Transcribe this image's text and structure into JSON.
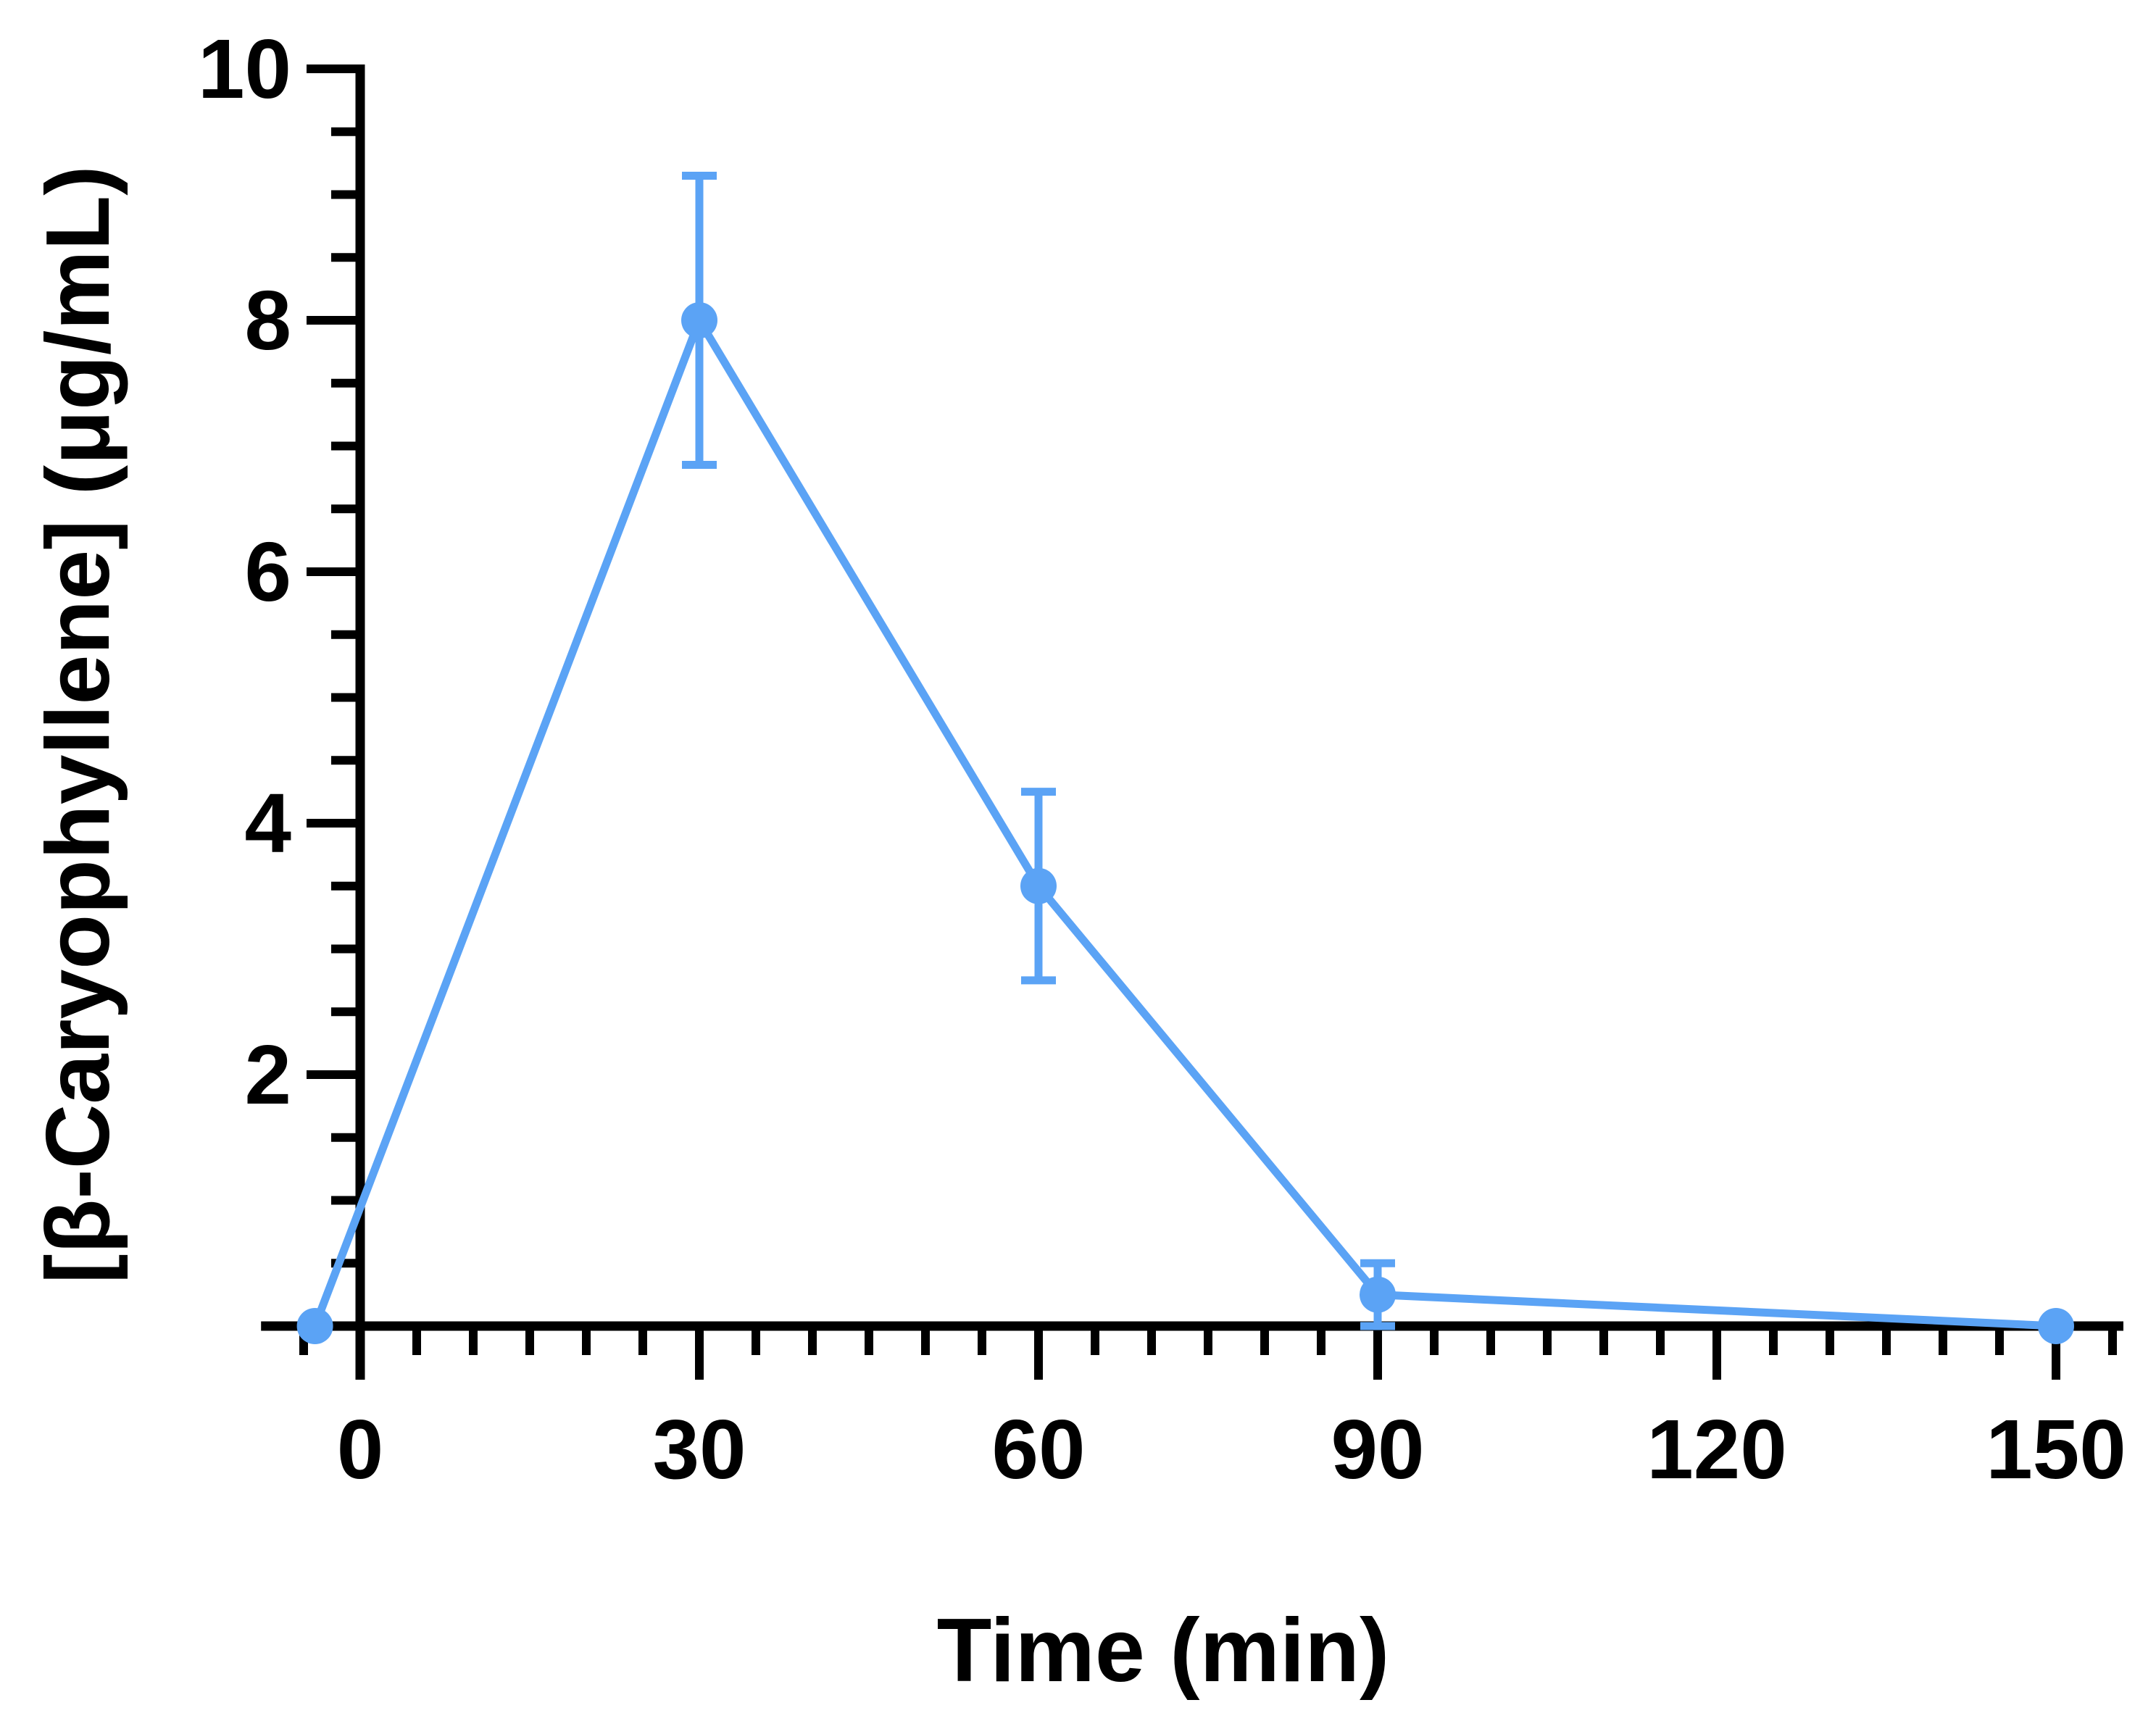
{
  "chart_data": {
    "type": "line",
    "title": "",
    "xlabel": "Time (min)",
    "ylabel": "[β-Caryophyllene] (μg/mL)",
    "xlim": [
      -8,
      155
    ],
    "ylim": [
      0,
      10
    ],
    "x_ticks": [
      "0",
      "30",
      "60",
      "90",
      "120",
      "150"
    ],
    "x_tick_values": [
      0,
      30,
      60,
      90,
      120,
      150
    ],
    "y_ticks": [
      "2",
      "4",
      "6",
      "8",
      "10"
    ],
    "y_tick_values": [
      2,
      4,
      6,
      8,
      10
    ],
    "grid": false,
    "legend": "none",
    "series": [
      {
        "color": "#5ba3f5",
        "x": [
          -4,
          30,
          60,
          90,
          150
        ],
        "y": [
          0,
          8.0,
          3.5,
          0.25,
          0
        ],
        "error": [
          null,
          1.15,
          0.75,
          0.25,
          null
        ]
      }
    ]
  }
}
